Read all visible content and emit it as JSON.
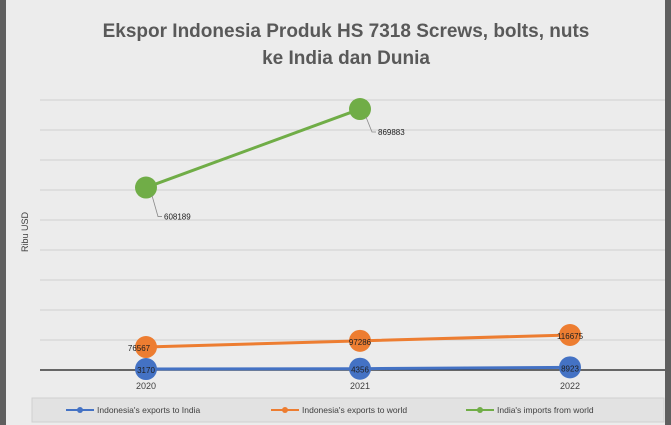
{
  "chart_data": {
    "type": "line",
    "title_lines": [
      "Ekspor Indonesia Produk HS 7318 Screws, bolts, nuts",
      "ke India dan Dunia"
    ],
    "ylabel": "Ribu USD",
    "xlabel": "",
    "categories": [
      "2020",
      "2021",
      "2022"
    ],
    "ylim": [
      -25000,
      1000000
    ],
    "grid": true,
    "legend_position": "bottom",
    "series": [
      {
        "name": "Indonesia's exports to India",
        "color": "#4472c4",
        "values": [
          3170,
          4356,
          8923
        ],
        "labels": [
          "3170",
          "4356",
          "8923"
        ]
      },
      {
        "name": "Indonesia's exports to world",
        "color": "#ed7d31",
        "values": [
          76567,
          97286,
          116675
        ],
        "labels": [
          "76567",
          "97286",
          "116675"
        ]
      },
      {
        "name": "India's imports from world",
        "color": "#70ad47",
        "values": [
          608189,
          869883,
          null
        ],
        "labels": [
          "608189",
          "869883",
          ""
        ]
      }
    ]
  }
}
